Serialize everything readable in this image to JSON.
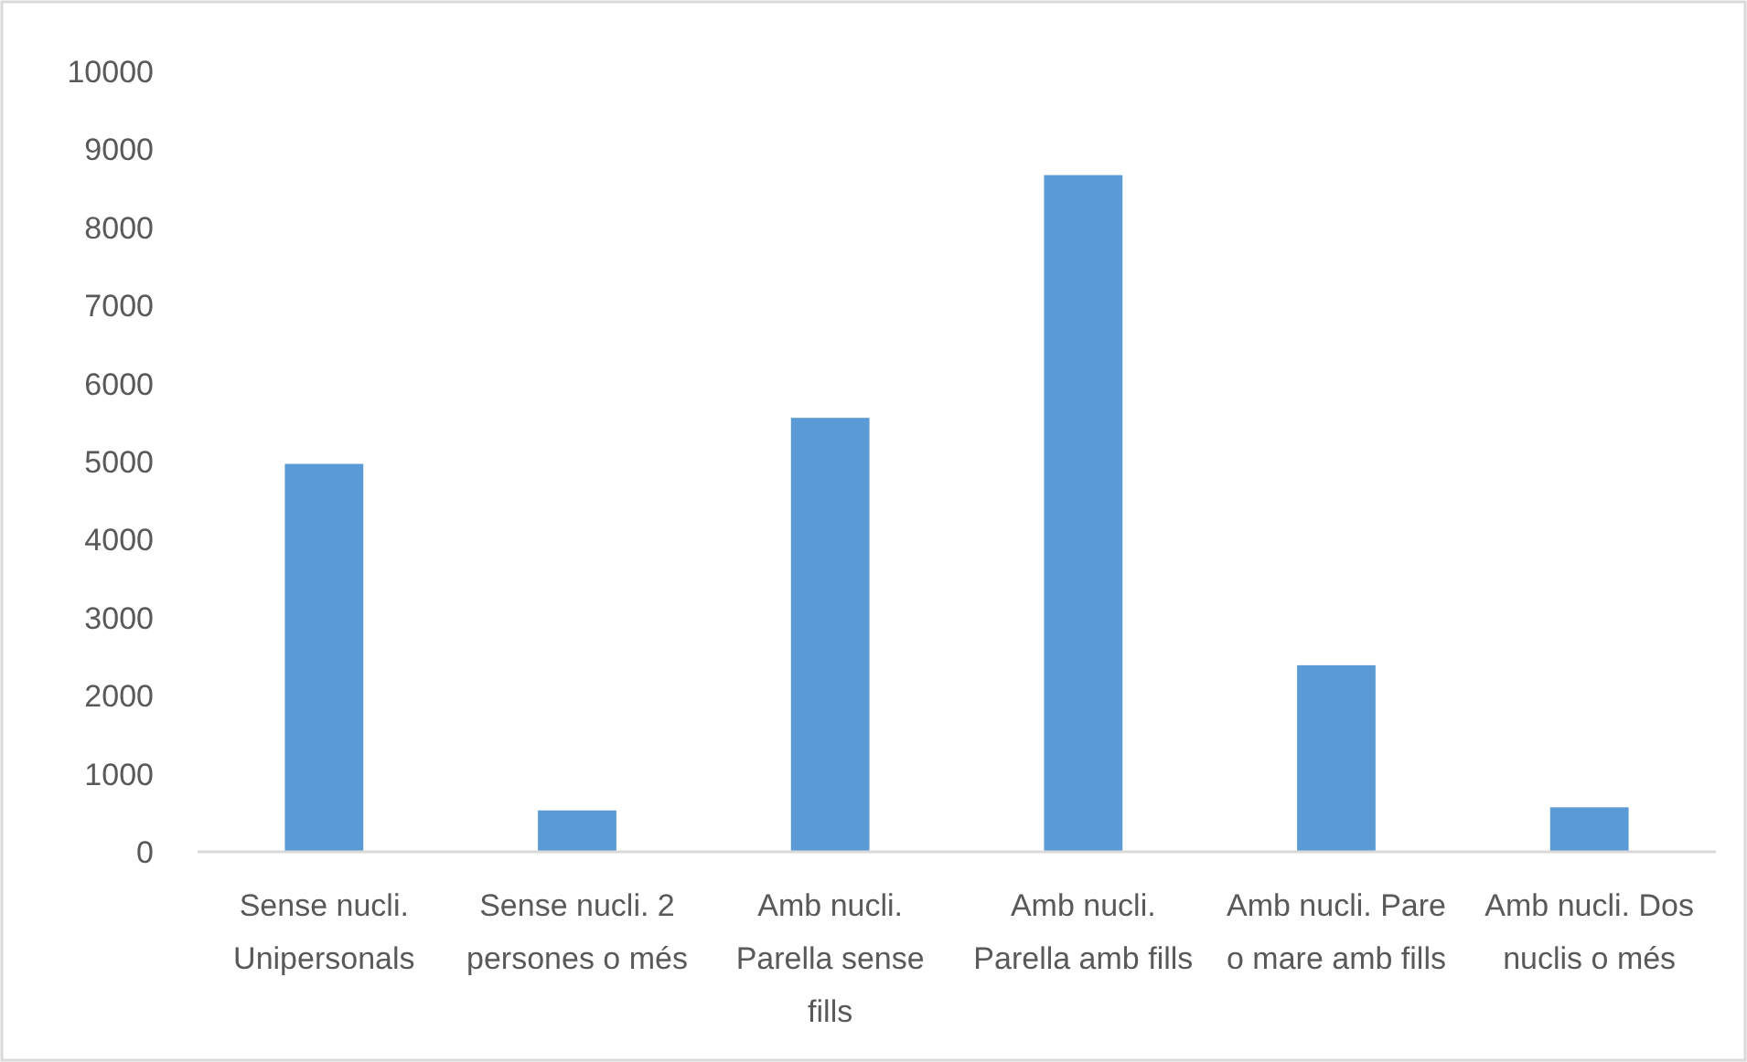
{
  "chart_data": {
    "type": "bar",
    "categories": [
      "Sense nucli. Unipersonals",
      "Sense nucli. 2 persones o més",
      "Amb nucli. Parella sense fills",
      "Amb nucli. Parella amb fills",
      "Amb nucli. Pare o mare amb fills",
      "Amb nucli. Dos nuclis o més"
    ],
    "values": [
      4970,
      530,
      5560,
      8670,
      2390,
      570
    ],
    "color": "#5b9bd5",
    "ylim": [
      0,
      10000
    ],
    "yticks": [
      0,
      1000,
      2000,
      3000,
      4000,
      5000,
      6000,
      7000,
      8000,
      9000,
      10000
    ]
  }
}
